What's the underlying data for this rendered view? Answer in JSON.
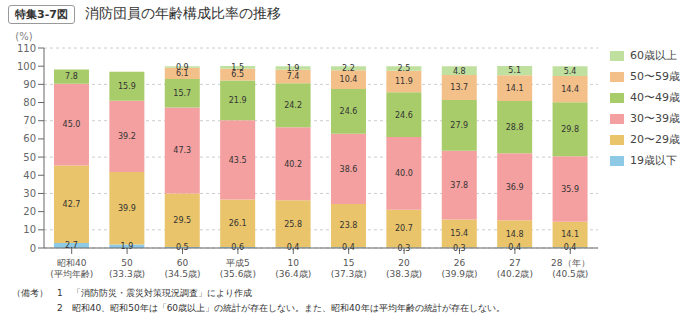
{
  "chart_data": {
    "type": "bar",
    "title": "消防団員の年齢構成比率の推移",
    "annotations": [
      "特集3-7図",
      "（備考）　1　「消防防災・震災対策現況調査」により作成",
      "　　　　　2　昭和40、昭和50年は「60歳以上」の統計が存在しない。また、昭和40年は平均年齢の統計が存在しない。"
    ],
    "y_label": "(%)",
    "categories": [
      "昭和40\n(平均年齢)",
      "50\n(33.3歳)",
      "60\n(34.5歳)",
      "平成5\n(35.6歳)",
      "10\n(36.4歳)",
      "15\n(37.3歳)",
      "20\n(38.3歳)",
      "26\n(39.9歳)",
      "27\n(40.2歳)",
      "28（年）\n(40.5歳)"
    ],
    "series": [
      {
        "name": "19歳以下",
        "color": "#8ecae6",
        "values": [
          2.7,
          1.9,
          0.5,
          0.6,
          0.4,
          0.4,
          0.3,
          0.3,
          0.4,
          0.4
        ],
        "value_labels": [
          "2.7",
          "1.9",
          "0.5",
          "0.6",
          "0.4",
          "0.4",
          "0.3",
          "0.3",
          "0.4",
          "0.4"
        ]
      },
      {
        "name": "20〜29歳",
        "color": "#e9c46a",
        "values": [
          42.7,
          39.9,
          29.5,
          26.1,
          25.8,
          23.8,
          20.7,
          15.4,
          14.8,
          14.1
        ],
        "value_labels": [
          "42.7",
          "39.9",
          "29.5",
          "26.1",
          "25.8",
          "23.8",
          "20.7",
          "15.4",
          "14.8",
          "14.1"
        ]
      },
      {
        "name": "30〜39歳",
        "color": "#f4a0a0",
        "values": [
          45.0,
          39.2,
          47.3,
          43.5,
          40.2,
          38.6,
          40.0,
          37.8,
          36.9,
          35.9
        ],
        "value_labels": [
          "45.0",
          "39.2",
          "47.3",
          "43.5",
          "40.2",
          "38.6",
          "40.0",
          "37.8",
          "36.9",
          "35.9"
        ]
      },
      {
        "name": "40〜49歳",
        "color": "#a8cc6a",
        "values": [
          7.8,
          15.9,
          15.7,
          21.9,
          24.2,
          24.6,
          24.6,
          27.9,
          28.8,
          29.8
        ],
        "value_labels": [
          "7.8",
          "15.9",
          "15.7",
          "21.9",
          "24.2",
          "24.6",
          "24.6",
          "27.9",
          "28.8",
          "29.8"
        ]
      },
      {
        "name": "50〜59歳",
        "color": "#f4c08a",
        "values": [
          0.0,
          0.0,
          6.1,
          6.5,
          7.4,
          10.4,
          11.9,
          13.7,
          14.1,
          14.4
        ],
        "value_labels": [
          null,
          null,
          "6.1",
          "6.5",
          "7.4",
          "10.4",
          "11.9",
          "13.7",
          "14.1",
          "14.4"
        ]
      },
      {
        "name": "60歳以上",
        "color": "#c0e0a0",
        "values": [
          0.0,
          0.0,
          0.9,
          1.5,
          1.9,
          2.2,
          2.5,
          4.8,
          5.1,
          5.4
        ],
        "value_labels": [
          null,
          null,
          "0.9",
          "1.5",
          "1.9",
          "2.2",
          "2.5",
          "4.8",
          "5.1",
          "5.4"
        ]
      }
    ],
    "ylim": [
      0,
      110
    ],
    "yticks": [
      0,
      10,
      20,
      30,
      40,
      50,
      60,
      70,
      80,
      90,
      100,
      110
    ],
    "stacked": true,
    "data_labels": true,
    "grid": true,
    "legend": "right"
  }
}
